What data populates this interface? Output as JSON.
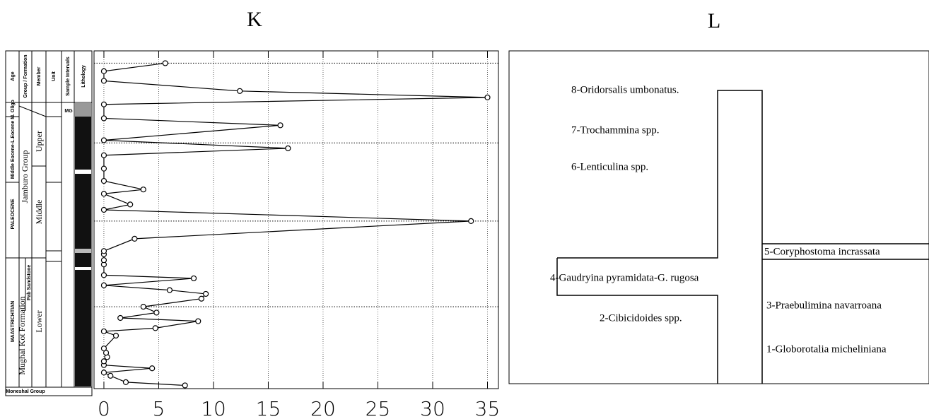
{
  "chart_data": {
    "type": "line",
    "title": "K",
    "x": [
      7.4,
      2.0,
      0.6,
      0,
      4.4,
      0,
      0,
      0.3,
      0.2,
      0,
      1.1,
      0,
      4.7,
      8.6,
      1.5,
      4.8,
      3.6,
      8.9,
      9.3,
      6.0,
      0,
      8.2,
      0,
      0,
      0,
      0,
      0,
      2.8,
      33.5,
      0,
      2.4,
      0,
      3.6,
      0,
      0,
      0,
      16.8,
      0,
      16.1,
      0,
      0,
      35,
      12.4,
      0,
      0,
      5.6
    ],
    "y": [
      0,
      0.6,
      1.8,
      2.4,
      3.2,
      3.8,
      4.5,
      5.3,
      6.1,
      6.9,
      9.3,
      10.1,
      10.7,
      12.0,
      12.6,
      13.6,
      14.7,
      16.2,
      17.1,
      17.8,
      18.7,
      20.0,
      20.6,
      22.6,
      23.4,
      24.5,
      25.1,
      27.4,
      30.7,
      32.8,
      33.8,
      35.8,
      36.6,
      38.2,
      40.5,
      43.0,
      44.3,
      45.8,
      48.6,
      49.9,
      52.5,
      53.8,
      55.0,
      56.9,
      58.7,
      60.2
    ],
    "xlim": [
      -0.9,
      36
    ],
    "ylim": [
      -0.6,
      62.5
    ],
    "xticks": [
      0,
      5,
      10,
      15,
      20,
      25,
      30,
      35
    ],
    "boundaries": [
      60.2,
      45.3,
      30.7,
      14.7
    ],
    "color": "#000000",
    "grid": true,
    "column": {
      "headers": [
        "Age",
        "Group / Formation",
        "Member",
        "Unit",
        "Sample Intervals",
        "Lithology"
      ],
      "ages": [
        "M. Oligo",
        "Middle Eocene-L.Eocene",
        "PALEOCENE",
        "MAASTRICHTIAN"
      ],
      "groups": [
        "Jamburo Group",
        "Mughal Kot Formation",
        "Pab Sandstone",
        "Moneshal Group"
      ],
      "members": [
        "Upper",
        "Middle",
        "Lower"
      ],
      "mark": "MG"
    }
  },
  "diagram": {
    "title": "L",
    "labels": [
      "8-Oridorsalis umbonatus.",
      "7-Trochammina spp.",
      "6-Lenticulina spp.",
      "5-Coryphostoma incrassata",
      "4-Gaudryina pyramidata-G. rugosa",
      "3-Praebulimina navarroana",
      "2-Cibicidoides spp.",
      "1-Globorotalia micheliniana"
    ]
  }
}
